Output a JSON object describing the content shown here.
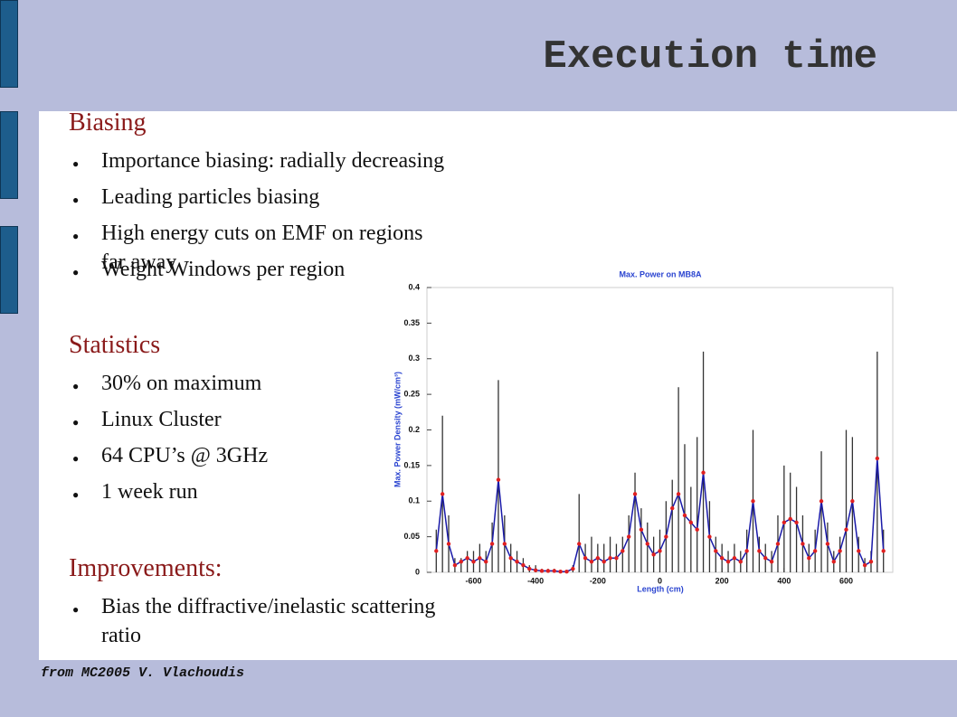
{
  "title": "Execution time",
  "sections": [
    {
      "heading": "Biasing",
      "items": [
        "Importance biasing: radially decreasing",
        "Leading particles biasing",
        "High energy cuts on EMF on regions far away",
        "Weight Windows per region"
      ]
    },
    {
      "heading": "Statistics",
      "items": [
        "30% on maximum",
        "Linux Cluster",
        "64 CPU’s @ 3GHz",
        "1 week run"
      ]
    },
    {
      "heading": "Improvements:",
      "items": [
        "Bias the diffractive/inelastic scattering ratio"
      ]
    }
  ],
  "footer": "from MC2005 V. Vlachoudis",
  "chart_data": {
    "type": "line",
    "title": "Max. Power on MB8A",
    "x_label": "Length (cm)",
    "y_label": "Max. Power Density (mW/cm³)",
    "x": [
      -720,
      -700,
      -680,
      -660,
      -640,
      -620,
      -600,
      -580,
      -560,
      -540,
      -520,
      -500,
      -480,
      -460,
      -440,
      -420,
      -400,
      -380,
      -360,
      -340,
      -320,
      -300,
      -280,
      -260,
      -240,
      -220,
      -200,
      -180,
      -160,
      -140,
      -120,
      -100,
      -80,
      -60,
      -40,
      -20,
      0,
      20,
      40,
      60,
      80,
      100,
      120,
      140,
      160,
      180,
      200,
      220,
      240,
      260,
      280,
      300,
      320,
      340,
      360,
      380,
      400,
      420,
      440,
      460,
      480,
      500,
      520,
      540,
      560,
      580,
      600,
      620,
      640,
      660,
      680,
      700,
      720
    ],
    "series": [
      {
        "type": "bar",
        "color": "#333333",
        "values": [
          0.06,
          0.22,
          0.08,
          0.02,
          0.02,
          0.03,
          0.03,
          0.04,
          0.03,
          0.07,
          0.27,
          0.08,
          0.04,
          0.03,
          0.02,
          0.01,
          0.01,
          0.005,
          0.005,
          0.005,
          0.003,
          0.003,
          0.01,
          0.11,
          0.04,
          0.05,
          0.04,
          0.04,
          0.05,
          0.04,
          0.05,
          0.08,
          0.14,
          0.09,
          0.07,
          0.05,
          0.06,
          0.1,
          0.13,
          0.26,
          0.18,
          0.12,
          0.19,
          0.31,
          0.1,
          0.05,
          0.04,
          0.03,
          0.04,
          0.03,
          0.06,
          0.2,
          0.05,
          0.04,
          0.03,
          0.08,
          0.15,
          0.14,
          0.12,
          0.08,
          0.04,
          0.06,
          0.17,
          0.07,
          0.03,
          0.05,
          0.2,
          0.19,
          0.05,
          0.02,
          0.03,
          0.31,
          0.06
        ]
      },
      {
        "type": "line",
        "color": "#1a1aa8",
        "marker_color": "#e02020",
        "values": [
          0.03,
          0.11,
          0.04,
          0.01,
          0.015,
          0.02,
          0.015,
          0.02,
          0.015,
          0.04,
          0.13,
          0.04,
          0.02,
          0.015,
          0.01,
          0.005,
          0.003,
          0.002,
          0.002,
          0.002,
          0.001,
          0.001,
          0.005,
          0.04,
          0.02,
          0.015,
          0.02,
          0.015,
          0.02,
          0.02,
          0.03,
          0.05,
          0.11,
          0.06,
          0.04,
          0.025,
          0.03,
          0.05,
          0.09,
          0.11,
          0.08,
          0.07,
          0.06,
          0.14,
          0.05,
          0.03,
          0.02,
          0.015,
          0.02,
          0.015,
          0.03,
          0.1,
          0.03,
          0.02,
          0.015,
          0.04,
          0.07,
          0.075,
          0.07,
          0.04,
          0.02,
          0.03,
          0.1,
          0.04,
          0.015,
          0.03,
          0.06,
          0.1,
          0.03,
          0.01,
          0.015,
          0.16,
          0.03
        ]
      }
    ],
    "xlim": [
      -750,
      750
    ],
    "ylim": [
      0,
      0.4
    ],
    "xticks": [
      -600,
      -400,
      -200,
      0,
      200,
      400,
      600
    ],
    "yticks": [
      0,
      0.05,
      0.1,
      0.15,
      0.2,
      0.25,
      0.3,
      0.35,
      0.4
    ]
  }
}
